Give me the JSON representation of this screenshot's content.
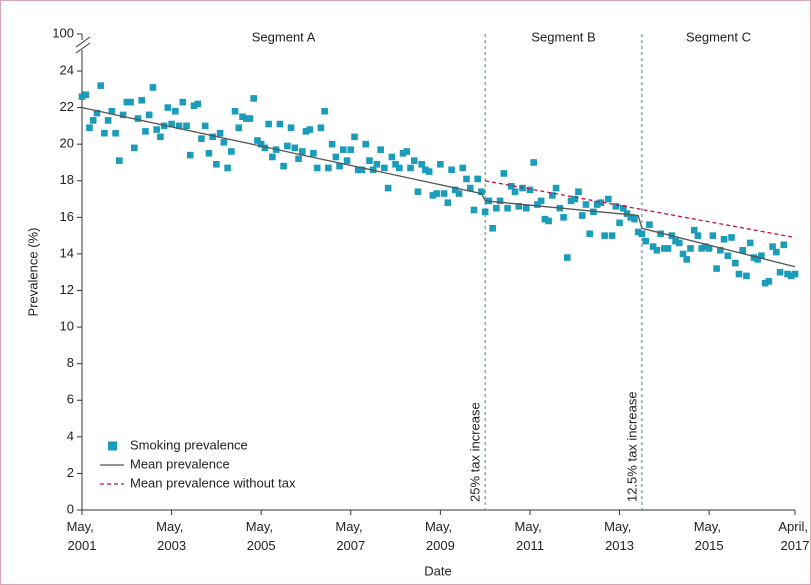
{
  "chart_data": {
    "type": "scatter",
    "x_label": "Date",
    "y_label": "Prevalence (%)",
    "xlim": [
      "2001-05",
      "2017-04"
    ],
    "xticks": [
      {
        "value": "2001-05",
        "label": "May, 2001"
      },
      {
        "value": "2003-05",
        "label": "May, 2003"
      },
      {
        "value": "2005-05",
        "label": "May, 2005"
      },
      {
        "value": "2007-05",
        "label": "May, 2007"
      },
      {
        "value": "2009-05",
        "label": "May, 2009"
      },
      {
        "value": "2011-05",
        "label": "May, 2011"
      },
      {
        "value": "2013-05",
        "label": "May, 2013"
      },
      {
        "value": "2015-05",
        "label": "May, 2015"
      },
      {
        "value": "2017-04",
        "label": "April, 2017"
      }
    ],
    "ylim": [
      0,
      100
    ],
    "axis_break": [
      25,
      99
    ],
    "yticks": [
      0,
      2,
      4,
      6,
      8,
      10,
      12,
      14,
      16,
      18,
      20,
      22,
      24,
      100
    ],
    "legend": "lower left",
    "segments": [
      "Segment A",
      "Segment B",
      "Segment C"
    ],
    "vlines": [
      {
        "x": "2010-05",
        "label": "25% tax increase"
      },
      {
        "x": "2013-11",
        "label": "12.5% tax increase"
      }
    ],
    "series": [
      {
        "name": "Smoking prevalence",
        "kind": "points",
        "color": "#1b9cbb",
        "x": [
          "2001-05",
          "2001-06",
          "2001-07",
          "2001-08",
          "2001-09",
          "2001-10",
          "2001-11",
          "2001-12",
          "2002-01",
          "2002-02",
          "2002-03",
          "2002-04",
          "2002-05",
          "2002-06",
          "2002-07",
          "2002-08",
          "2002-09",
          "2002-10",
          "2002-11",
          "2002-12",
          "2003-01",
          "2003-02",
          "2003-03",
          "2003-04",
          "2003-05",
          "2003-06",
          "2003-07",
          "2003-08",
          "2003-09",
          "2003-10",
          "2003-11",
          "2003-12",
          "2004-01",
          "2004-02",
          "2004-03",
          "2004-04",
          "2004-05",
          "2004-06",
          "2004-07",
          "2004-08",
          "2004-09",
          "2004-10",
          "2004-11",
          "2004-12",
          "2005-01",
          "2005-02",
          "2005-03",
          "2005-04",
          "2005-05",
          "2005-06",
          "2005-07",
          "2005-08",
          "2005-09",
          "2005-10",
          "2005-11",
          "2005-12",
          "2006-01",
          "2006-02",
          "2006-03",
          "2006-04",
          "2006-05",
          "2006-06",
          "2006-07",
          "2006-08",
          "2006-09",
          "2006-10",
          "2006-11",
          "2006-12",
          "2007-01",
          "2007-02",
          "2007-03",
          "2007-04",
          "2007-05",
          "2007-06",
          "2007-07",
          "2007-08",
          "2007-09",
          "2007-10",
          "2007-11",
          "2007-12",
          "2008-01",
          "2008-02",
          "2008-03",
          "2008-04",
          "2008-05",
          "2008-06",
          "2008-07",
          "2008-08",
          "2008-09",
          "2008-10",
          "2008-11",
          "2008-12",
          "2009-01",
          "2009-02",
          "2009-03",
          "2009-04",
          "2009-05",
          "2009-06",
          "2009-07",
          "2009-08",
          "2009-09",
          "2009-10",
          "2009-11",
          "2009-12",
          "2010-01",
          "2010-02",
          "2010-03",
          "2010-04",
          "2010-05",
          "2010-06",
          "2010-07",
          "2010-08",
          "2010-09",
          "2010-10",
          "2010-11",
          "2010-12",
          "2011-01",
          "2011-02",
          "2011-03",
          "2011-04",
          "2011-05",
          "2011-06",
          "2011-07",
          "2011-08",
          "2011-09",
          "2011-10",
          "2011-11",
          "2011-12",
          "2012-01",
          "2012-02",
          "2012-03",
          "2012-04",
          "2012-05",
          "2012-06",
          "2012-07",
          "2012-08",
          "2012-09",
          "2012-10",
          "2012-11",
          "2012-12",
          "2013-01",
          "2013-02",
          "2013-03",
          "2013-04",
          "2013-05",
          "2013-06",
          "2013-07",
          "2013-08",
          "2013-09",
          "2013-10",
          "2013-11",
          "2013-12",
          "2014-01",
          "2014-02",
          "2014-03",
          "2014-04",
          "2014-05",
          "2014-06",
          "2014-07",
          "2014-08",
          "2014-09",
          "2014-10",
          "2014-11",
          "2014-12",
          "2015-01",
          "2015-02",
          "2015-03",
          "2015-04",
          "2015-05",
          "2015-06",
          "2015-07",
          "2015-08",
          "2015-09",
          "2015-10",
          "2015-11",
          "2015-12",
          "2016-01",
          "2016-02",
          "2016-03",
          "2016-04",
          "2016-05",
          "2016-06",
          "2016-07",
          "2016-08",
          "2016-09",
          "2016-10",
          "2016-11",
          "2016-12",
          "2017-01",
          "2017-02",
          "2017-03",
          "2017-04"
        ],
        "values": [
          22.6,
          22.7,
          20.9,
          21.3,
          21.7,
          23.2,
          20.6,
          21.3,
          21.8,
          20.6,
          19.1,
          21.6,
          22.3,
          22.3,
          19.8,
          21.4,
          22.4,
          20.7,
          21.6,
          23.1,
          20.8,
          20.4,
          21.0,
          22.0,
          21.1,
          21.8,
          21.0,
          22.3,
          21.0,
          19.4,
          22.1,
          22.2,
          20.3,
          21.0,
          19.5,
          20.4,
          18.9,
          20.6,
          20.1,
          18.7,
          19.6,
          21.8,
          20.9,
          21.5,
          21.4,
          21.4,
          22.5,
          20.2,
          20.0,
          19.8,
          21.1,
          19.3,
          19.7,
          21.1,
          18.8,
          19.9,
          20.9,
          19.8,
          19.2,
          19.6,
          20.7,
          20.8,
          19.5,
          18.7,
          20.9,
          21.8,
          18.7,
          20.0,
          19.3,
          18.8,
          19.7,
          19.1,
          19.7,
          20.4,
          18.6,
          18.6,
          20.0,
          19.1,
          18.6,
          18.9,
          19.7,
          18.7,
          17.6,
          19.3,
          18.9,
          18.7,
          19.5,
          19.6,
          18.7,
          19.1,
          17.4,
          18.9,
          18.6,
          18.5,
          17.2,
          17.3,
          18.9,
          17.3,
          16.8,
          18.6,
          17.5,
          17.3,
          18.7,
          18.1,
          17.6,
          16.4,
          18.1,
          17.4,
          16.3,
          16.9,
          15.4,
          16.5,
          16.9,
          18.4,
          16.5,
          17.7,
          17.4,
          16.6,
          17.6,
          16.5,
          17.5,
          19.0,
          16.7,
          16.9,
          15.9,
          15.8,
          17.2,
          17.6,
          16.5,
          16.0,
          13.8,
          16.9,
          17.0,
          17.4,
          16.1,
          16.7,
          15.1,
          16.3,
          16.7,
          16.8,
          15.0,
          17.0,
          15.0,
          16.6,
          15.7,
          16.5,
          16.2,
          16.0,
          15.9,
          15.2,
          15.1,
          14.7,
          15.6,
          14.4,
          14.2,
          15.1,
          14.3,
          14.3,
          15.0,
          14.7,
          14.6,
          14.0,
          13.7,
          14.3,
          15.3,
          15.0,
          14.3,
          14.4,
          14.3,
          15.0,
          13.2,
          14.2,
          14.8,
          13.9,
          14.9,
          13.5,
          12.9,
          14.2,
          12.8,
          14.6,
          13.8,
          13.7,
          13.9,
          12.4,
          12.5,
          14.4,
          14.1,
          13.0,
          14.5,
          12.9,
          12.8,
          12.9
        ]
      },
      {
        "name": "Mean prevalence",
        "kind": "line",
        "color": "#555555",
        "dashed": false,
        "x": [
          "2001-05",
          "2010-04",
          "2010-05",
          "2013-10",
          "2013-11",
          "2017-04"
        ],
        "values": [
          22.0,
          17.3,
          16.9,
          16.1,
          15.4,
          13.3
        ]
      },
      {
        "name": "Mean prevalence without tax",
        "kind": "line",
        "color": "#c0143c",
        "dashed": true,
        "x": [
          "2010-05",
          "2017-04"
        ],
        "values": [
          18.0,
          14.9
        ]
      }
    ]
  }
}
